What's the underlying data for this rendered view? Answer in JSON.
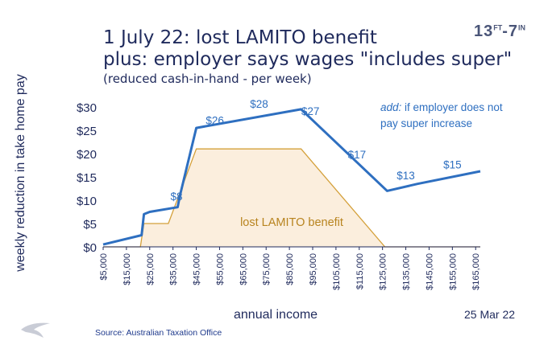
{
  "header": {
    "title_line1": "1 July 22:  lost LAMITO benefit",
    "title_line2": "plus: employer says wages \"includes super\"",
    "subtitle": "(reduced cash-in-hand  - per week)",
    "brand": "13",
    "brand_sup1": "FT",
    "brand_num": "7",
    "brand_sup2": "IN"
  },
  "footer": {
    "source": "Source: Australian Taxation Office",
    "date": "25 Mar 22"
  },
  "chart_data": {
    "type": "line",
    "ylabel": "weekly reduction in take home pay",
    "xlabel": "annual income",
    "xlim": [
      5000,
      167000
    ],
    "ylim": [
      0,
      30
    ],
    "yticks": [
      0,
      5,
      10,
      15,
      20,
      25,
      30
    ],
    "ytick_labels": [
      "$0",
      "$5",
      "$10",
      "$15",
      "$20",
      "$25",
      "$30"
    ],
    "xticks": [
      5000,
      15000,
      25000,
      35000,
      45000,
      55000,
      65000,
      75000,
      85000,
      95000,
      105000,
      115000,
      125000,
      135000,
      145000,
      155000,
      165000
    ],
    "xtick_labels": [
      "$5,000",
      "$15,000",
      "$25,000",
      "$35,000",
      "$45,000",
      "$55,000",
      "$65,000",
      "$75,000",
      "$85,000",
      "$95,000",
      "$105,000",
      "$115,000",
      "$125,000",
      "$135,000",
      "$145,000",
      "$155,000",
      "$165,000"
    ],
    "grid": false,
    "series": [
      {
        "name": "lost LAMITO benefit",
        "kind": "area",
        "color": "#d4a03a",
        "fill": "#fbeedd",
        "x": [
          5000,
          21000,
          22500,
          33000,
          45000,
          90000,
          126000,
          167000
        ],
        "y": [
          0,
          0,
          5,
          5,
          21,
          21,
          0,
          0
        ]
      },
      {
        "name": "",
        "kind": "line",
        "color": "#2e6fc0",
        "x": [
          5000,
          21500,
          22500,
          25000,
          37000,
          38000,
          45000,
          90000,
          127000,
          140000,
          167000
        ],
        "y": [
          0.5,
          2.5,
          7,
          7.5,
          8.5,
          11,
          25.5,
          29.5,
          12,
          13.5,
          16.2
        ]
      }
    ],
    "annotations": [
      {
        "text": "$8",
        "x": 36500,
        "y": 10,
        "color": "#2e6fc0"
      },
      {
        "text": "$26",
        "x": 53000,
        "y": 26.3,
        "color": "#2e6fc0"
      },
      {
        "text": "$28",
        "x": 72000,
        "y": 29.8,
        "color": "#2e6fc0"
      },
      {
        "text": "$27",
        "x": 94000,
        "y": 28.3,
        "color": "#2e6fc0"
      },
      {
        "text": "$17",
        "x": 114000,
        "y": 19,
        "color": "#2e6fc0"
      },
      {
        "text": "$13",
        "x": 135000,
        "y": 14.5,
        "color": "#2e6fc0"
      },
      {
        "text": "$15",
        "x": 155000,
        "y": 16.8,
        "color": "#2e6fc0"
      },
      {
        "text": "lost LAMITO benefit",
        "x": 86000,
        "y": 4.5,
        "color": "#b8841f"
      }
    ],
    "note_label": "add:",
    "note_line1": "if employer does not",
    "note_line2": "pay super increase",
    "colors": {
      "axis": "#1f2a5c",
      "line": "#2e6fc0",
      "area_stroke": "#d4a03a",
      "area_fill": "#fbeedd"
    }
  }
}
